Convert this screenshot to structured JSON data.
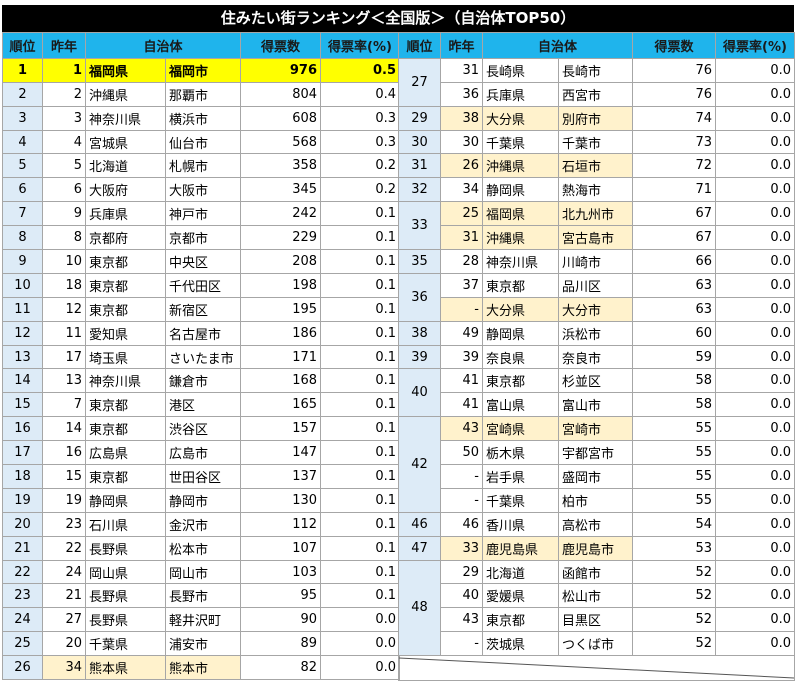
{
  "title": "住みたい街ランキング＜全国版＞（自治体TOP50）",
  "headers": [
    "順位",
    "昨年",
    "自治体",
    "得票数",
    "得票率(%)"
  ],
  "left": {
    "rows": [
      {
        "rank": "1",
        "prev": "1",
        "pref": "福岡県",
        "city": "福岡市",
        "votes": "976",
        "rate": "0.5",
        "highlight": "strong"
      },
      {
        "rank": "2",
        "prev": "2",
        "pref": "沖縄県",
        "city": "那覇市",
        "votes": "804",
        "rate": "0.4"
      },
      {
        "rank": "3",
        "prev": "3",
        "pref": "神奈川県",
        "city": "横浜市",
        "votes": "608",
        "rate": "0.3"
      },
      {
        "rank": "4",
        "prev": "4",
        "pref": "宮城県",
        "city": "仙台市",
        "votes": "568",
        "rate": "0.3"
      },
      {
        "rank": "5",
        "prev": "5",
        "pref": "北海道",
        "city": "札幌市",
        "votes": "358",
        "rate": "0.2"
      },
      {
        "rank": "6",
        "prev": "6",
        "pref": "大阪府",
        "city": "大阪市",
        "votes": "345",
        "rate": "0.2"
      },
      {
        "rank": "7",
        "prev": "9",
        "pref": "兵庫県",
        "city": "神戸市",
        "votes": "242",
        "rate": "0.1"
      },
      {
        "rank": "8",
        "prev": "8",
        "pref": "京都府",
        "city": "京都市",
        "votes": "229",
        "rate": "0.1"
      },
      {
        "rank": "9",
        "prev": "10",
        "pref": "東京都",
        "city": "中央区",
        "votes": "208",
        "rate": "0.1"
      },
      {
        "rank": "10",
        "prev": "18",
        "pref": "東京都",
        "city": "千代田区",
        "votes": "198",
        "rate": "0.1"
      },
      {
        "rank": "11",
        "prev": "12",
        "pref": "東京都",
        "city": "新宿区",
        "votes": "195",
        "rate": "0.1"
      },
      {
        "rank": "12",
        "prev": "11",
        "pref": "愛知県",
        "city": "名古屋市",
        "votes": "186",
        "rate": "0.1"
      },
      {
        "rank": "13",
        "prev": "17",
        "pref": "埼玉県",
        "city": "さいたま市",
        "votes": "171",
        "rate": "0.1"
      },
      {
        "rank": "14",
        "prev": "13",
        "pref": "神奈川県",
        "city": "鎌倉市",
        "votes": "168",
        "rate": "0.1"
      },
      {
        "rank": "15",
        "prev": "7",
        "pref": "東京都",
        "city": "港区",
        "votes": "165",
        "rate": "0.1"
      },
      {
        "rank": "16",
        "prev": "14",
        "pref": "東京都",
        "city": "渋谷区",
        "votes": "157",
        "rate": "0.1"
      },
      {
        "rank": "17",
        "prev": "16",
        "pref": "広島県",
        "city": "広島市",
        "votes": "147",
        "rate": "0.1"
      },
      {
        "rank": "18",
        "prev": "15",
        "pref": "東京都",
        "city": "世田谷区",
        "votes": "137",
        "rate": "0.1"
      },
      {
        "rank": "19",
        "prev": "19",
        "pref": "静岡県",
        "city": "静岡市",
        "votes": "130",
        "rate": "0.1"
      },
      {
        "rank": "20",
        "prev": "23",
        "pref": "石川県",
        "city": "金沢市",
        "votes": "112",
        "rate": "0.1"
      },
      {
        "rank": "21",
        "prev": "22",
        "pref": "長野県",
        "city": "松本市",
        "votes": "107",
        "rate": "0.1"
      },
      {
        "rank": "22",
        "prev": "24",
        "pref": "岡山県",
        "city": "岡山市",
        "votes": "103",
        "rate": "0.1"
      },
      {
        "rank": "23",
        "prev": "21",
        "pref": "長野県",
        "city": "長野市",
        "votes": "95",
        "rate": "0.1"
      },
      {
        "rank": "24",
        "prev": "27",
        "pref": "長野県",
        "city": "軽井沢町",
        "votes": "90",
        "rate": "0.0"
      },
      {
        "rank": "25",
        "prev": "20",
        "pref": "千葉県",
        "city": "浦安市",
        "votes": "89",
        "rate": "0.0"
      },
      {
        "rank": "26",
        "prev": "34",
        "pref": "熊本県",
        "city": "熊本市",
        "votes": "82",
        "rate": "0.0",
        "highlight": "pale"
      }
    ]
  },
  "right": {
    "groups": [
      {
        "rank": "27",
        "rows": [
          {
            "prev": "31",
            "pref": "長崎県",
            "city": "長崎市",
            "votes": "76",
            "rate": "0.0"
          },
          {
            "prev": "36",
            "pref": "兵庫県",
            "city": "西宮市",
            "votes": "76",
            "rate": "0.0"
          }
        ]
      },
      {
        "rank": "29",
        "rows": [
          {
            "prev": "38",
            "pref": "大分県",
            "city": "別府市",
            "votes": "74",
            "rate": "0.0",
            "highlight": "pale"
          }
        ]
      },
      {
        "rank": "30",
        "rows": [
          {
            "prev": "30",
            "pref": "千葉県",
            "city": "千葉市",
            "votes": "73",
            "rate": "0.0"
          }
        ]
      },
      {
        "rank": "31",
        "rows": [
          {
            "prev": "26",
            "pref": "沖縄県",
            "city": "石垣市",
            "votes": "72",
            "rate": "0.0",
            "highlight": "pale"
          }
        ]
      },
      {
        "rank": "32",
        "rows": [
          {
            "prev": "34",
            "pref": "静岡県",
            "city": "熱海市",
            "votes": "71",
            "rate": "0.0"
          }
        ]
      },
      {
        "rank": "33",
        "rows": [
          {
            "prev": "25",
            "pref": "福岡県",
            "city": "北九州市",
            "votes": "67",
            "rate": "0.0",
            "highlight": "pale"
          },
          {
            "prev": "31",
            "pref": "沖縄県",
            "city": "宮古島市",
            "votes": "67",
            "rate": "0.0",
            "highlight": "pale"
          }
        ]
      },
      {
        "rank": "35",
        "rows": [
          {
            "prev": "28",
            "pref": "神奈川県",
            "city": "川崎市",
            "votes": "66",
            "rate": "0.0"
          }
        ]
      },
      {
        "rank": "36",
        "rows": [
          {
            "prev": "37",
            "pref": "東京都",
            "city": "品川区",
            "votes": "63",
            "rate": "0.0"
          },
          {
            "prev": "-",
            "pref": "大分県",
            "city": "大分市",
            "votes": "63",
            "rate": "0.0",
            "highlight": "pale"
          }
        ]
      },
      {
        "rank": "38",
        "rows": [
          {
            "prev": "49",
            "pref": "静岡県",
            "city": "浜松市",
            "votes": "60",
            "rate": "0.0"
          }
        ]
      },
      {
        "rank": "39",
        "rows": [
          {
            "prev": "39",
            "pref": "奈良県",
            "city": "奈良市",
            "votes": "59",
            "rate": "0.0"
          }
        ]
      },
      {
        "rank": "40",
        "rows": [
          {
            "prev": "41",
            "pref": "東京都",
            "city": "杉並区",
            "votes": "58",
            "rate": "0.0"
          },
          {
            "prev": "41",
            "pref": "富山県",
            "city": "富山市",
            "votes": "58",
            "rate": "0.0"
          }
        ]
      },
      {
        "rank": "42",
        "rows": [
          {
            "prev": "43",
            "pref": "宮崎県",
            "city": "宮崎市",
            "votes": "55",
            "rate": "0.0",
            "highlight": "pale"
          },
          {
            "prev": "50",
            "pref": "栃木県",
            "city": "宇都宮市",
            "votes": "55",
            "rate": "0.0"
          },
          {
            "prev": "-",
            "pref": "岩手県",
            "city": "盛岡市",
            "votes": "55",
            "rate": "0.0"
          },
          {
            "prev": "-",
            "pref": "千葉県",
            "city": "柏市",
            "votes": "55",
            "rate": "0.0"
          }
        ]
      },
      {
        "rank": "46",
        "rows": [
          {
            "prev": "46",
            "pref": "香川県",
            "city": "高松市",
            "votes": "54",
            "rate": "0.0"
          }
        ]
      },
      {
        "rank": "47",
        "rows": [
          {
            "prev": "33",
            "pref": "鹿児島県",
            "city": "鹿児島市",
            "votes": "53",
            "rate": "0.0",
            "highlight": "pale"
          }
        ]
      },
      {
        "rank": "48",
        "rows": [
          {
            "prev": "29",
            "pref": "北海道",
            "city": "函館市",
            "votes": "52",
            "rate": "0.0"
          },
          {
            "prev": "40",
            "pref": "愛媛県",
            "city": "松山市",
            "votes": "52",
            "rate": "0.0"
          },
          {
            "prev": "43",
            "pref": "東京都",
            "city": "目黒区",
            "votes": "52",
            "rate": "0.0"
          },
          {
            "prev": "-",
            "pref": "茨城県",
            "city": "つくば市",
            "votes": "52",
            "rate": "0.0"
          }
        ]
      }
    ]
  }
}
